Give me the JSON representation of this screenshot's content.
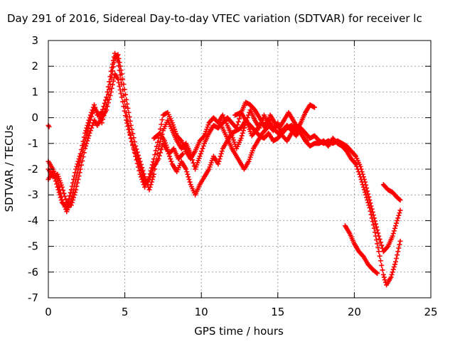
{
  "chart_data": {
    "type": "scatter",
    "title": "Day 291 of 2016, Sidereal Day-to-day VTEC variation (SDTVAR) for receiver lc",
    "xlabel": "GPS time / hours",
    "ylabel": "SDTVAR / TECUs",
    "xlim": [
      0,
      25
    ],
    "ylim": [
      -7,
      3
    ],
    "xticks": [
      0,
      5,
      10,
      15,
      20,
      25
    ],
    "yticks": [
      -7,
      -6,
      -5,
      -4,
      -3,
      -2,
      -1,
      0,
      1,
      2,
      3
    ],
    "grid": true,
    "marker": "+",
    "series": [
      {
        "color": "#ff0000",
        "tracks": [
          [
            [
              0.0,
              -0.3
            ],
            [
              0.05,
              -0.35
            ]
          ],
          [
            [
              0.0,
              -1.7
            ],
            [
              0.3,
              -2.0
            ],
            [
              0.6,
              -2.4
            ],
            [
              0.9,
              -3.2
            ],
            [
              1.2,
              -3.65
            ],
            [
              1.5,
              -3.2
            ],
            [
              1.8,
              -2.4
            ],
            [
              2.1,
              -1.6
            ],
            [
              2.4,
              -0.9
            ],
            [
              2.7,
              -0.2
            ],
            [
              3.0,
              0.4
            ],
            [
              3.2,
              0.2
            ],
            [
              3.5,
              -0.2
            ],
            [
              3.8,
              0.5
            ],
            [
              4.1,
              1.5
            ],
            [
              4.35,
              2.3
            ],
            [
              4.55,
              2.45
            ],
            [
              4.8,
              1.7
            ],
            [
              5.1,
              0.7
            ],
            [
              5.4,
              -0.3
            ],
            [
              5.7,
              -1.1
            ],
            [
              6.0,
              -1.7
            ],
            [
              6.3,
              -2.3
            ],
            [
              6.6,
              -2.8
            ],
            [
              6.9,
              -2.2
            ],
            [
              7.2,
              -1.2
            ],
            [
              7.5,
              -0.5
            ],
            [
              7.8,
              -0.1
            ],
            [
              8.1,
              -0.5
            ],
            [
              8.4,
              -0.9
            ],
            [
              8.7,
              -1.2
            ],
            [
              9.0,
              -1.0
            ],
            [
              9.3,
              -1.4
            ],
            [
              9.6,
              -2.0
            ],
            [
              9.9,
              -1.5
            ],
            [
              10.2,
              -1.0
            ],
            [
              10.5,
              -0.6
            ],
            [
              10.8,
              -0.3
            ],
            [
              11.1,
              -0.4
            ],
            [
              11.4,
              -0.2
            ],
            [
              11.7,
              0.0
            ],
            [
              12.0,
              -0.2
            ],
            [
              12.3,
              -0.4
            ],
            [
              12.6,
              0.2
            ],
            [
              12.9,
              0.6
            ],
            [
              13.2,
              0.5
            ],
            [
              13.5,
              0.3
            ],
            [
              13.8,
              0.0
            ],
            [
              14.1,
              -0.3
            ],
            [
              14.4,
              -0.1
            ],
            [
              14.7,
              -0.4
            ],
            [
              15.0,
              -0.6
            ],
            [
              15.3,
              -0.5
            ],
            [
              15.6,
              -0.3
            ],
            [
              15.9,
              -0.5
            ],
            [
              16.2,
              -0.7
            ],
            [
              16.5,
              -0.4
            ],
            [
              16.8,
              -0.6
            ],
            [
              17.1,
              -0.8
            ],
            [
              17.4,
              -0.7
            ],
            [
              17.7,
              -0.9
            ],
            [
              18.0,
              -1.0
            ],
            [
              18.3,
              -0.9
            ],
            [
              18.6,
              -1.0
            ],
            [
              18.9,
              -0.9
            ],
            [
              19.2,
              -1.0
            ],
            [
              19.5,
              -1.1
            ],
            [
              19.8,
              -1.3
            ],
            [
              20.1,
              -1.5
            ],
            [
              20.4,
              -1.9
            ],
            [
              20.7,
              -2.5
            ],
            [
              21.0,
              -3.2
            ],
            [
              21.3,
              -3.9
            ],
            [
              21.6,
              -4.6
            ],
            [
              21.9,
              -5.2
            ],
            [
              22.2,
              -5.0
            ],
            [
              22.5,
              -4.6
            ],
            [
              22.8,
              -4.0
            ],
            [
              23.0,
              -3.6
            ]
          ],
          [
            [
              0.0,
              -2.4
            ],
            [
              0.3,
              -2.1
            ],
            [
              0.6,
              -2.7
            ],
            [
              0.9,
              -3.3
            ],
            [
              1.2,
              -3.5
            ],
            [
              1.5,
              -2.8
            ],
            [
              1.8,
              -2.0
            ],
            [
              2.1,
              -1.4
            ],
            [
              2.4,
              -0.6
            ],
            [
              2.7,
              0.0
            ],
            [
              3.0,
              0.5
            ],
            [
              3.2,
              0.1
            ],
            [
              3.5,
              0.2
            ],
            [
              3.8,
              0.8
            ],
            [
              4.1,
              1.8
            ],
            [
              4.35,
              2.5
            ],
            [
              4.55,
              2.2
            ],
            [
              4.8,
              1.3
            ],
            [
              5.1,
              0.2
            ],
            [
              5.4,
              -0.8
            ],
            [
              5.7,
              -1.5
            ],
            [
              6.0,
              -2.2
            ],
            [
              6.3,
              -2.7
            ],
            [
              6.6,
              -2.3
            ],
            [
              6.9,
              -1.6
            ],
            [
              7.2,
              -0.8
            ],
            [
              7.5,
              0.1
            ],
            [
              7.8,
              0.2
            ],
            [
              8.1,
              -0.2
            ],
            [
              8.4,
              -0.7
            ],
            [
              8.7,
              -0.9
            ],
            [
              9.0,
              -1.3
            ],
            [
              9.3,
              -1.6
            ],
            [
              9.6,
              -1.3
            ],
            [
              9.9,
              -0.9
            ],
            [
              10.2,
              -0.7
            ],
            [
              10.5,
              -0.2
            ],
            [
              10.8,
              0.0
            ],
            [
              11.1,
              -0.2
            ],
            [
              11.4,
              0.1
            ],
            [
              11.7,
              -0.3
            ],
            [
              12.0,
              -0.7
            ],
            [
              12.3,
              -1.2
            ],
            [
              12.6,
              -0.8
            ],
            [
              12.9,
              -0.2
            ],
            [
              13.2,
              0.3
            ],
            [
              13.5,
              -0.1
            ],
            [
              13.8,
              -0.4
            ],
            [
              14.1,
              0.1
            ],
            [
              14.4,
              -0.3
            ],
            [
              14.7,
              -0.5
            ],
            [
              15.0,
              -0.2
            ],
            [
              15.3,
              -0.7
            ],
            [
              15.6,
              -0.9
            ],
            [
              15.9,
              -0.6
            ],
            [
              16.2,
              -0.3
            ],
            [
              16.5,
              -0.6
            ],
            [
              16.8,
              -0.9
            ],
            [
              17.1,
              -1.1
            ],
            [
              17.4,
              -1.0
            ],
            [
              17.7,
              -1.0
            ],
            [
              18.0,
              -0.9
            ],
            [
              18.3,
              -1.1
            ],
            [
              18.6,
              -0.8
            ],
            [
              18.9,
              -1.0
            ],
            [
              19.2,
              -1.1
            ],
            [
              19.5,
              -1.3
            ],
            [
              19.8,
              -1.6
            ],
            [
              20.1,
              -1.8
            ],
            [
              20.4,
              -2.3
            ],
            [
              20.7,
              -2.9
            ],
            [
              21.0,
              -3.5
            ],
            [
              21.3,
              -4.3
            ],
            [
              21.6,
              -5.2
            ],
            [
              21.9,
              -6.1
            ],
            [
              22.1,
              -6.5
            ],
            [
              22.4,
              -6.2
            ],
            [
              22.7,
              -5.6
            ],
            [
              23.0,
              -4.8
            ]
          ],
          [
            [
              0.0,
              -2.0
            ],
            [
              0.3,
              -2.3
            ],
            [
              0.6,
              -2.2
            ],
            [
              0.9,
              -2.7
            ],
            [
              1.2,
              -3.3
            ],
            [
              1.5,
              -3.4
            ],
            [
              1.8,
              -2.8
            ],
            [
              2.1,
              -2.0
            ],
            [
              2.4,
              -1.2
            ],
            [
              2.7,
              -0.6
            ],
            [
              3.0,
              -0.1
            ],
            [
              3.2,
              -0.3
            ],
            [
              3.5,
              0.0
            ],
            [
              3.8,
              0.3
            ],
            [
              4.1,
              1.0
            ],
            [
              4.35,
              1.7
            ],
            [
              4.55,
              1.5
            ],
            [
              4.8,
              0.8
            ],
            [
              5.1,
              -0.1
            ],
            [
              5.4,
              -0.8
            ],
            [
              5.7,
              -1.4
            ],
            [
              6.0,
              -1.9
            ],
            [
              6.3,
              -2.5
            ],
            [
              6.6,
              -2.4
            ],
            [
              6.9,
              -1.9
            ],
            [
              7.2,
              -1.6
            ],
            [
              7.5,
              -1.0
            ],
            [
              7.8,
              -1.3
            ],
            [
              8.1,
              -1.8
            ],
            [
              8.4,
              -2.1
            ],
            [
              8.7,
              -1.7
            ],
            [
              9.0,
              -2.0
            ],
            [
              9.3,
              -2.6
            ],
            [
              9.6,
              -3.0
            ],
            [
              9.9,
              -2.6
            ],
            [
              10.2,
              -2.3
            ],
            [
              10.5,
              -2.0
            ],
            [
              10.8,
              -1.5
            ],
            [
              11.1,
              -1.8
            ],
            [
              11.4,
              -1.2
            ],
            [
              11.7,
              -0.9
            ],
            [
              12.0,
              -0.6
            ],
            [
              12.3,
              -0.5
            ],
            [
              12.6,
              -0.4
            ],
            [
              12.9,
              -0.1
            ],
            [
              13.2,
              -0.3
            ],
            [
              13.5,
              -0.5
            ],
            [
              13.8,
              -0.7
            ],
            [
              14.1,
              -0.8
            ],
            [
              14.4,
              -0.6
            ],
            [
              14.7,
              -0.9
            ],
            [
              15.0,
              -0.8
            ],
            [
              15.3,
              -0.6
            ],
            [
              15.6,
              -0.4
            ],
            [
              15.9,
              -0.3
            ],
            [
              16.2,
              -0.5
            ],
            [
              16.5,
              -0.2
            ],
            [
              16.8,
              0.2
            ],
            [
              17.1,
              0.5
            ],
            [
              17.4,
              0.4
            ]
          ],
          [
            [
              12.2,
              0.1
            ],
            [
              12.6,
              0.2
            ],
            [
              13.0,
              -0.2
            ],
            [
              13.3,
              -0.7
            ],
            [
              13.6,
              -0.5
            ],
            [
              13.9,
              -0.2
            ],
            [
              14.2,
              -0.4
            ],
            [
              14.5,
              0.1
            ],
            [
              14.8,
              -0.2
            ],
            [
              15.1,
              -0.4
            ],
            [
              15.4,
              -0.1
            ],
            [
              15.7,
              0.2
            ],
            [
              16.0,
              -0.1
            ],
            [
              16.3,
              -0.4
            ],
            [
              16.6,
              -0.7
            ],
            [
              16.9,
              -0.9
            ]
          ],
          [
            [
              11.3,
              -0.3
            ],
            [
              11.7,
              -0.8
            ],
            [
              12.0,
              -1.2
            ],
            [
              12.4,
              -1.6
            ],
            [
              12.8,
              -2.0
            ],
            [
              13.1,
              -1.7
            ],
            [
              13.4,
              -1.2
            ],
            [
              13.7,
              -0.9
            ],
            [
              14.0,
              -0.6
            ],
            [
              14.3,
              -0.4
            ]
          ],
          [
            [
              6.9,
              -0.8
            ],
            [
              7.3,
              -0.6
            ],
            [
              7.6,
              -0.9
            ],
            [
              7.9,
              -1.4
            ],
            [
              8.2,
              -1.2
            ],
            [
              8.5,
              -1.6
            ],
            [
              8.8,
              -1.4
            ]
          ],
          [
            [
              19.4,
              -4.2
            ],
            [
              19.7,
              -4.5
            ],
            [
              20.0,
              -4.9
            ],
            [
              20.3,
              -5.2
            ],
            [
              20.6,
              -5.4
            ],
            [
              20.9,
              -5.7
            ],
            [
              21.2,
              -5.9
            ],
            [
              21.5,
              -6.05
            ]
          ],
          [
            [
              21.9,
              -2.6
            ],
            [
              22.2,
              -2.8
            ],
            [
              22.5,
              -2.9
            ],
            [
              22.8,
              -3.1
            ],
            [
              23.0,
              -3.2
            ]
          ]
        ]
      }
    ]
  }
}
